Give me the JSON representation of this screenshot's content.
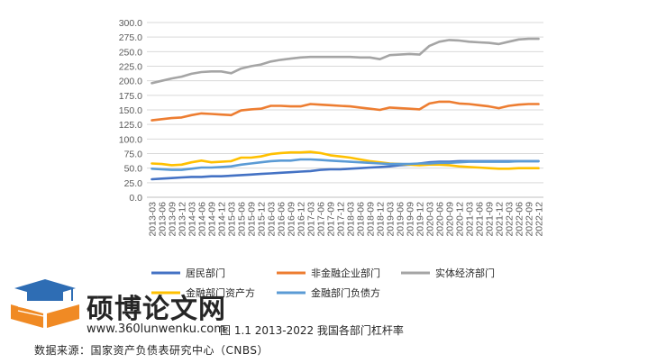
{
  "chart_data": {
    "type": "line",
    "x": [
      "2013-03",
      "2013-06",
      "2013-09",
      "2013-12",
      "2014-03",
      "2014-06",
      "2014-09",
      "2014-12",
      "2015-03",
      "2015-06",
      "2015-09",
      "2015-12",
      "2016-03",
      "2016-06",
      "2016-09",
      "2016-12",
      "2017-03",
      "2017-06",
      "2017-09",
      "2017-12",
      "2018-03",
      "2018-06",
      "2018-09",
      "2018-12",
      "2019-03",
      "2019-06",
      "2019-09",
      "2019-12",
      "2020-03",
      "2020-06",
      "2020-09",
      "2020-12",
      "2021-03",
      "2021-06",
      "2021-09",
      "2021-12",
      "2022-03",
      "2022-06",
      "2022-09",
      "2022-12"
    ],
    "ylim": [
      0,
      300
    ],
    "yticks": [
      "0.0",
      "25.0",
      "50.0",
      "75.0",
      "100.0",
      "125.0",
      "150.0",
      "175.0",
      "200.0",
      "225.0",
      "250.0",
      "275.0",
      "300.0"
    ],
    "grid": true,
    "legend_position": "bottom",
    "series": [
      {
        "name": "居民部门",
        "color": "#4472C4",
        "values": [
          31,
          32,
          33,
          34,
          35,
          35,
          36,
          36,
          37,
          38,
          39,
          40,
          41,
          42,
          43,
          44,
          45,
          47,
          48,
          48,
          49,
          50,
          51,
          52,
          53,
          55,
          56,
          58,
          60,
          61,
          61,
          62,
          62,
          62,
          62,
          62,
          62,
          62,
          62,
          62
        ]
      },
      {
        "name": "非金融企业部门",
        "color": "#ED7D31",
        "values": [
          132,
          134,
          136,
          137,
          141,
          144,
          143,
          142,
          141,
          149,
          151,
          152,
          157,
          157,
          156,
          156,
          160,
          159,
          158,
          157,
          156,
          154,
          152,
          150,
          154,
          153,
          152,
          151,
          161,
          164,
          164,
          161,
          160,
          158,
          156,
          153,
          157,
          159,
          160,
          160
        ]
      },
      {
        "name": "实体经济部门",
        "color": "#A5A5A5",
        "values": [
          196,
          200,
          204,
          207,
          212,
          215,
          216,
          216,
          213,
          221,
          225,
          228,
          233,
          236,
          238,
          240,
          241,
          241,
          241,
          241,
          241,
          240,
          240,
          237,
          244,
          245,
          246,
          245,
          260,
          267,
          270,
          269,
          267,
          266,
          265,
          263,
          267,
          271,
          272,
          272
        ]
      },
      {
        "name": "金融部门资产方",
        "color": "#FFC000",
        "values": [
          58,
          57,
          55,
          56,
          60,
          63,
          60,
          61,
          62,
          68,
          68,
          70,
          74,
          76,
          77,
          77,
          78,
          76,
          72,
          70,
          68,
          65,
          62,
          60,
          58,
          57,
          56,
          55,
          56,
          56,
          55,
          53,
          52,
          51,
          50,
          49,
          49,
          50,
          50,
          50
        ]
      },
      {
        "name": "金融部门负债方",
        "color": "#5B9BD5",
        "values": [
          49,
          48,
          47,
          47,
          49,
          51,
          51,
          52,
          53,
          56,
          58,
          60,
          62,
          63,
          63,
          65,
          65,
          64,
          63,
          62,
          61,
          60,
          59,
          58,
          57,
          57,
          57,
          58,
          58,
          59,
          59,
          60,
          61,
          61,
          61,
          61,
          61,
          62,
          62,
          62
        ]
      }
    ]
  },
  "watermark": {
    "brand": "硕博论文网",
    "url": "www.360lunwenku.com"
  },
  "caption": "图 1.1 2013-2022 我国各部门杠杆率",
  "source": "数据来源：国家资产负债表研究中心（CNBS）"
}
